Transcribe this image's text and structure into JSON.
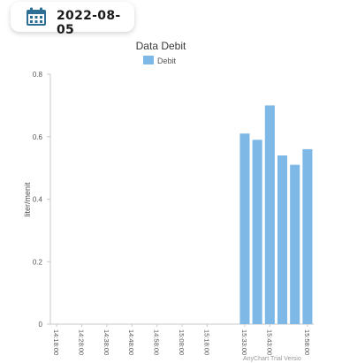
{
  "header": {
    "date": "2022-08-05",
    "icon": "calendar-icon",
    "icon_color": "#2f6f96"
  },
  "chart_data": {
    "type": "bar",
    "title": "Data Debit",
    "xlabel": "",
    "ylabel": "liter/menit",
    "ylim": [
      0,
      0.8
    ],
    "yticks": [
      "0",
      "0.2",
      "0.4",
      "0.6",
      "0.8"
    ],
    "grid": false,
    "legend_position": "top",
    "bar_color": "#7db8e6",
    "categories": [
      "14:18:00",
      "14:23:00",
      "14:28:00",
      "14:33:00",
      "14:38:00",
      "14:43:00",
      "14:48:00",
      "14:53:00",
      "14:58:00",
      "15:03:00",
      "15:08:00",
      "15:13:00",
      "15:18:00",
      "15:23:00",
      "15:28:00",
      "15:33:00",
      "15:38:00",
      "15:43:00",
      "15:48:00",
      "15:53:00",
      "15:58:00"
    ],
    "x_tick_labels": [
      "14:18:00",
      "14:28:00",
      "14:38:00",
      "14:48:00",
      "14:58:00",
      "15:08:00",
      "15:18:00",
      "15:33:00",
      "15:43:00",
      "15:58:00"
    ],
    "series": [
      {
        "name": "Debit",
        "values": [
          0,
          0,
          0,
          0,
          0,
          0,
          0,
          0,
          0,
          0,
          0,
          0,
          0,
          0,
          0,
          0.61,
          0.59,
          0.7,
          0.54,
          0.51,
          0.56
        ]
      }
    ],
    "watermark": "AnyChart Trial Versio"
  }
}
